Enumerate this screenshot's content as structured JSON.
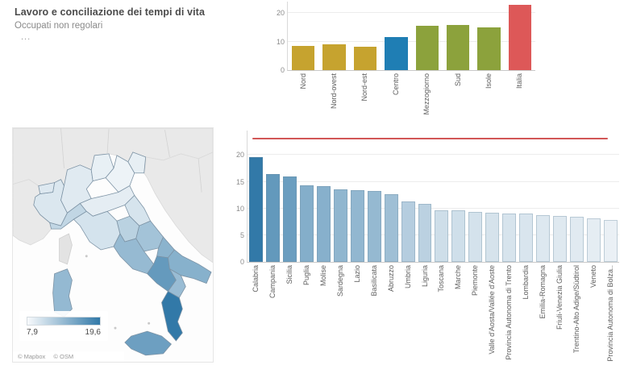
{
  "header": {
    "title": "Lavoro e conciliazione dei tempi di vita",
    "subtitle": "Occupati non regolari",
    "ellipsis": "..."
  },
  "colors": {
    "gold": "#c6a32f",
    "blue": "#1f7eb4",
    "olive": "#8ca23c",
    "red": "#dd5858",
    "refline": "#d25757",
    "scale_low": "#eaf0f5",
    "scale_high": "#3279a8",
    "bar_border": "rgba(110,140,160,0.35)",
    "map_land": "#e9e9e9",
    "map_sea": "#fdfdfd"
  },
  "chart_data": [
    {
      "id": "territory-bar-chart",
      "type": "bar",
      "title": "",
      "categories": [
        "Nord",
        "Nord-ovest",
        "Nord-est",
        "Centro",
        "Mezzogiorno",
        "Sud",
        "Isole",
        "Italia"
      ],
      "values": [
        8.6,
        8.9,
        8.3,
        11.5,
        15.4,
        15.7,
        15.0,
        23.0
      ],
      "bar_color_keys": [
        "gold",
        "gold",
        "gold",
        "blue",
        "olive",
        "olive",
        "olive",
        "red"
      ],
      "xlabel": "",
      "ylabel": "",
      "ylim": [
        0,
        24
      ],
      "yticks": [
        0,
        10,
        20
      ],
      "grid": true,
      "legend": "none"
    },
    {
      "id": "italy-choropleth-map",
      "type": "heatmap",
      "subtype": "choropleth-map",
      "title": "",
      "legend": {
        "min_label": "7,9",
        "max_label": "19,6",
        "min": 7.9,
        "max": 19.6,
        "position": "bottom-left"
      },
      "attribution": [
        "© Mapbox",
        "© OSM"
      ],
      "regions": [
        "Piemonte",
        "Valle d'Aosta/Vallée d'Aoste",
        "Lombardia",
        "Trentino-Alto Adige/Südtirol",
        "Veneto",
        "Friuli-Venezia Giulia",
        "Liguria",
        "Emilia-Romagna",
        "Toscana",
        "Umbria",
        "Marche",
        "Lazio",
        "Abruzzo",
        "Molise",
        "Campania",
        "Puglia",
        "Basilicata",
        "Calabria",
        "Sicilia",
        "Sardegna"
      ],
      "values": [
        9.3,
        9.2,
        9.0,
        8.5,
        8.2,
        8.6,
        10.9,
        8.7,
        9.7,
        11.3,
        9.6,
        13.5,
        12.7,
        14.2,
        16.5,
        14.4,
        13.3,
        19.6,
        16.0,
        13.6
      ]
    },
    {
      "id": "region-bar-chart",
      "type": "bar",
      "title": "",
      "categories": [
        "Calabria",
        "Campania",
        "Sicilia",
        "Puglia",
        "Molise",
        "Sardegna",
        "Lazio",
        "Basilicata",
        "Abruzzo",
        "Umbria",
        "Liguria",
        "Toscana",
        "Marche",
        "Piemonte",
        "Valle d'Aosta/Vallée d'Aoste",
        "Provincia Autonoma di Trento",
        "Lombardia",
        "Emilia-Romagna",
        "Friuli-Venezia Giulia",
        "Trentino-Alto Adige/Südtirol",
        "Veneto",
        "Provincia Autonoma di Bolza.."
      ],
      "values": [
        19.6,
        16.5,
        16.0,
        14.4,
        14.2,
        13.6,
        13.5,
        13.3,
        12.7,
        11.3,
        10.9,
        9.7,
        9.6,
        9.3,
        9.2,
        9.1,
        9.0,
        8.7,
        8.6,
        8.5,
        8.2,
        7.9
      ],
      "color_scale": {
        "min": 7.9,
        "max": 19.6
      },
      "reference_line": {
        "value": 23.0,
        "color_key": "refline"
      },
      "xlabel": "",
      "ylabel": "",
      "ylim": [
        0,
        24.6
      ],
      "yticks": [
        0,
        5,
        10,
        15,
        20
      ],
      "grid": true,
      "legend": "none"
    }
  ]
}
